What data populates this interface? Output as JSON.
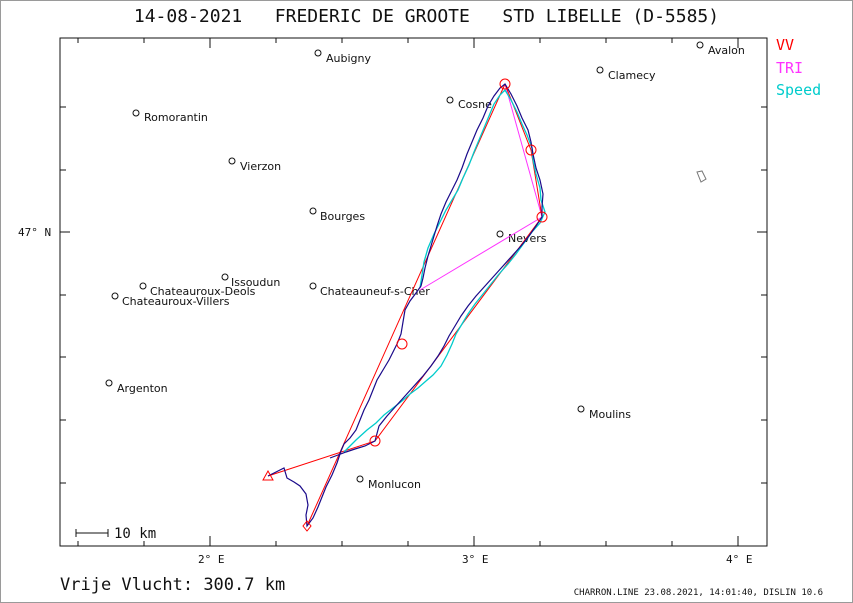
{
  "header": {
    "date": "14-08-2021",
    "pilot": "FREDERIC DE GROOTE",
    "glider": "STD LIBELLE (D-5585)"
  },
  "legend": [
    {
      "label": "VV",
      "color": "#ff0000"
    },
    {
      "label": "TRI",
      "color": "#ff33ff"
    },
    {
      "label": "Speed",
      "color": "#00cccc"
    }
  ],
  "axes": {
    "x_ticks": [
      "2° E",
      "3° E",
      "4° E"
    ],
    "y_ticks": [
      "47° N"
    ]
  },
  "cities": [
    {
      "name": "Aubigny"
    },
    {
      "name": "Avalon"
    },
    {
      "name": "Clamecy"
    },
    {
      "name": "Romorantin"
    },
    {
      "name": "Cosne"
    },
    {
      "name": "Vierzon"
    },
    {
      "name": "Bourges"
    },
    {
      "name": "Nevers"
    },
    {
      "name": "Issoudun"
    },
    {
      "name": "Chateauroux-Deols"
    },
    {
      "name": "Chateauroux-Villers"
    },
    {
      "name": "Chateauneuf-s-Cher"
    },
    {
      "name": "Argenton"
    },
    {
      "name": "Moulins"
    },
    {
      "name": "Monlucon"
    }
  ],
  "scale_bar": {
    "label": "10 km"
  },
  "footer": {
    "free_flight_label": "Vrije Vlucht:",
    "free_flight_value": "300.7 km",
    "software_info": "CHARRON.LINE 23.08.2021, 14:01:40, DISLIN 10.6"
  },
  "colors": {
    "track": "#1a0a8a",
    "task_line": "#ff0000",
    "triangle": "#ff33ff",
    "speed": "#00cccc"
  }
}
